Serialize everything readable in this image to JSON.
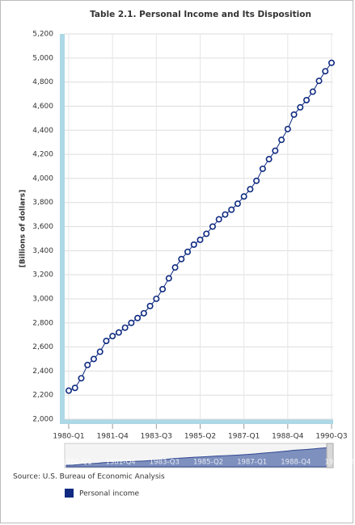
{
  "chart_data": {
    "type": "line",
    "title": "Table 2.1. Personal Income and Its Disposition",
    "y_label": "[Billions of dollars]",
    "source": "Source: U.S. Bureau of Economic Analysis",
    "categories": [
      "1980-Q1",
      null,
      null,
      null,
      null,
      null,
      null,
      "1981-Q4",
      null,
      null,
      null,
      null,
      null,
      null,
      "1983-Q3",
      null,
      null,
      null,
      null,
      null,
      null,
      "1985-Q2",
      null,
      null,
      null,
      null,
      null,
      null,
      "1987-Q1",
      null,
      null,
      null,
      null,
      null,
      null,
      "1988-Q4",
      null,
      null,
      null,
      null,
      null,
      null,
      "1990-Q3"
    ],
    "series": [
      {
        "name": "Personal income",
        "color": "#0f2a80",
        "values": [
          2237,
          2260,
          2340,
          2450,
          2500,
          2560,
          2650,
          2690,
          2720,
          2760,
          2800,
          2840,
          2880,
          2940,
          3000,
          3080,
          3170,
          3260,
          3330,
          3390,
          3450,
          3490,
          3540,
          3600,
          3660,
          3700,
          3740,
          3790,
          3850,
          3910,
          3980,
          4080,
          4160,
          4230,
          4320,
          4410,
          4530,
          4590,
          4650,
          4720,
          4810,
          4890,
          4960
        ]
      }
    ],
    "ylim": [
      2000,
      5200
    ],
    "yticks": [
      {
        "value": 2000,
        "label": "2,000"
      },
      {
        "value": 2200,
        "label": "2,200"
      },
      {
        "value": 2400,
        "label": "2,400"
      },
      {
        "value": 2600,
        "label": "2,600"
      },
      {
        "value": 2800,
        "label": "2,800"
      },
      {
        "value": 3000,
        "label": "3,000"
      },
      {
        "value": 3200,
        "label": "3,200"
      },
      {
        "value": 3400,
        "label": "3,400"
      },
      {
        "value": 3600,
        "label": "3,600"
      },
      {
        "value": 3800,
        "label": "3,800"
      },
      {
        "value": 4000,
        "label": "4,000"
      },
      {
        "value": 4200,
        "label": "4,200"
      },
      {
        "value": 4400,
        "label": "4,400"
      },
      {
        "value": 4600,
        "label": "4,600"
      },
      {
        "value": 4800,
        "label": "4,800"
      },
      {
        "value": 5000,
        "label": "5,000"
      },
      {
        "value": 5200,
        "label": "5,200"
      }
    ],
    "grid": true
  }
}
